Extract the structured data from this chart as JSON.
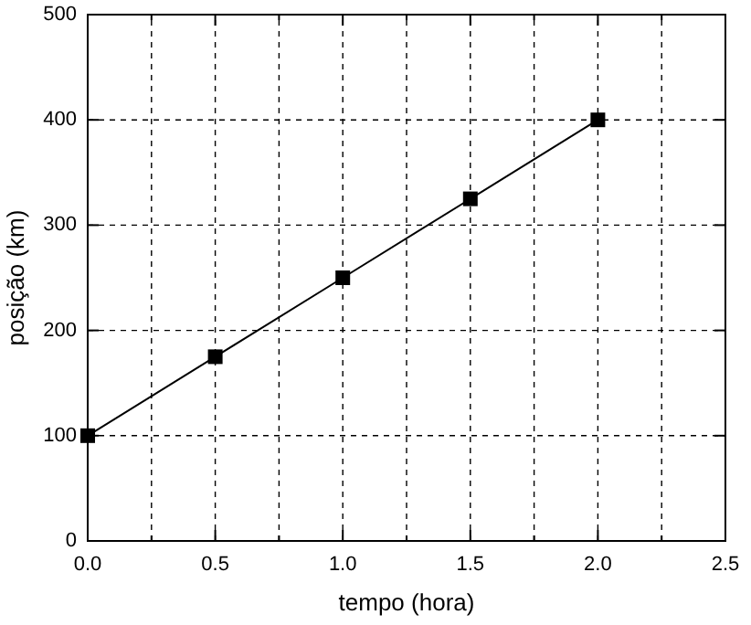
{
  "chart_data": {
    "type": "line",
    "xlabel": "tempo (hora)",
    "ylabel": "posição (km)",
    "x": [
      0,
      0.5,
      1,
      1.5,
      2
    ],
    "series": [
      {
        "color": "#000000",
        "values": [
          100,
          175,
          250,
          325,
          400
        ]
      }
    ],
    "xlim": [
      0,
      2.5
    ],
    "ylim": [
      0,
      500
    ],
    "xticks": [
      {
        "value": 0,
        "label": "0.0"
      },
      {
        "value": 0.25,
        "label": null
      },
      0.5,
      {
        "value": 0.75,
        "label": null
      },
      {
        "value": 1,
        "label": "1.0"
      },
      {
        "value": 1.25,
        "label": null
      },
      1.5,
      {
        "value": 1.75,
        "label": null
      },
      {
        "value": 2,
        "label": "2.0"
      },
      {
        "value": 2.25,
        "label": null
      },
      2.5
    ],
    "yticks": [
      0,
      100,
      200,
      300,
      400,
      500
    ],
    "grid": true,
    "marker": "square",
    "line_style": "solid"
  }
}
